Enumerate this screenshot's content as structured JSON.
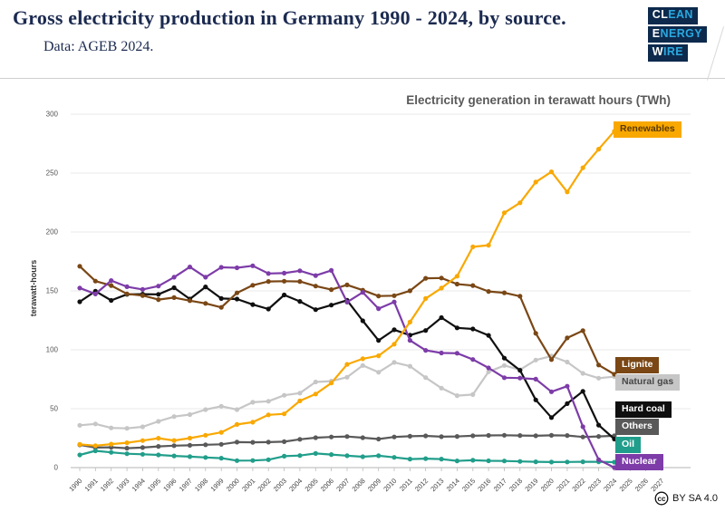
{
  "header": {
    "title": "Gross electricity production in Germany 1990 - 2024, by source.",
    "subtitle": "Data: AGEB 2024.",
    "logo": {
      "lines": [
        {
          "white": "CL",
          "cyan": "EAN"
        },
        {
          "white": "E",
          "cyan": "NERGY"
        },
        {
          "white": "W",
          "cyan": "IRE"
        }
      ],
      "navy": "#0d2a4d",
      "cyan": "#2aa9e0"
    }
  },
  "chart_data": {
    "type": "line",
    "title": "Electricity generation in terawatt hours (TWh)",
    "ylabel": "terawatt-hours",
    "ylim": [
      0,
      300
    ],
    "y_ticks": [
      0,
      50,
      100,
      150,
      200,
      250,
      300
    ],
    "grid": "horizontal-only",
    "legend_position": "right-inline-labels",
    "x": [
      1990,
      1991,
      1992,
      1993,
      1994,
      1995,
      1996,
      1997,
      1998,
      1999,
      2000,
      2001,
      2002,
      2003,
      2004,
      2005,
      2006,
      2007,
      2008,
      2009,
      2010,
      2011,
      2012,
      2013,
      2014,
      2015,
      2016,
      2017,
      2018,
      2019,
      2020,
      2021,
      2022,
      2023,
      2024
    ],
    "x_axis_labels": [
      "1990",
      "1991",
      "1992",
      "1993",
      "1994",
      "1995",
      "1996",
      "1997",
      "1998",
      "1999",
      "2000",
      "2001",
      "2002",
      "2003",
      "2004",
      "2005",
      "2006",
      "2007",
      "2008",
      "2009",
      "2010",
      "2011",
      "2012",
      "2013",
      "2014",
      "2015",
      "2016",
      "2017",
      "2018",
      "2019",
      "2020",
      "2021",
      "2022",
      "2023",
      "2024",
      "2025",
      "2026",
      "2027"
    ],
    "series": [
      {
        "name": "Renewables",
        "color": "#F9A800",
        "label_text_color": "#5a3a00",
        "values": [
          19.7,
          18.6,
          19.9,
          21.1,
          22.9,
          24.9,
          23.0,
          25.0,
          27.5,
          29.9,
          36.6,
          38.5,
          44.8,
          45.6,
          56.6,
          62.5,
          71.8,
          87.6,
          92.4,
          94.9,
          104.8,
          123.5,
          143.5,
          152.4,
          162.5,
          187.4,
          188.8,
          216.3,
          224.8,
          242.4,
          251.1,
          234.0,
          254.5,
          270.3,
          285.5
        ]
      },
      {
        "name": "Lignite",
        "color": "#7A4715",
        "label_text_color": "#ffffff",
        "values": [
          170.9,
          158.3,
          154.5,
          147.5,
          146.1,
          142.6,
          144.3,
          141.7,
          139.4,
          136.0,
          148.3,
          154.8,
          158.0,
          158.2,
          158.0,
          154.1,
          151.1,
          155.1,
          150.6,
          145.6,
          145.9,
          150.1,
          160.7,
          160.9,
          155.8,
          154.5,
          149.5,
          148.4,
          145.5,
          114.0,
          91.7,
          110.1,
          116.2,
          87.1,
          79.2
        ]
      },
      {
        "name": "Natural gas",
        "color": "#C6C6C6",
        "label_text_color": "#474747",
        "values": [
          35.9,
          37.1,
          33.7,
          33.3,
          34.6,
          39.2,
          43.3,
          45.0,
          49.2,
          52.1,
          49.2,
          55.5,
          56.3,
          61.4,
          63.2,
          72.7,
          73.4,
          76.7,
          86.7,
          80.9,
          89.3,
          86.1,
          76.4,
          67.5,
          61.1,
          62.0,
          81.3,
          86.7,
          83.0,
          91.3,
          94.7,
          89.6,
          80.0,
          75.9,
          77.2
        ]
      },
      {
        "name": "Hard coal",
        "color": "#0f0f0f",
        "label_text_color": "#ffffff",
        "values": [
          140.8,
          149.8,
          141.9,
          147.1,
          147.2,
          147.1,
          152.7,
          143.1,
          153.4,
          143.5,
          143.1,
          138.4,
          134.6,
          146.5,
          141.1,
          134.1,
          137.9,
          142.0,
          124.6,
          107.9,
          117.0,
          112.4,
          116.4,
          127.3,
          118.6,
          117.7,
          112.2,
          92.9,
          82.6,
          57.5,
          42.5,
          54.3,
          64.8,
          36.1,
          24.2
        ]
      },
      {
        "name": "Others",
        "color": "#595959",
        "label_text_color": "#ffffff",
        "values": [
          19.3,
          17.0,
          17.2,
          16.5,
          17.0,
          18.0,
          18.6,
          18.9,
          19.4,
          19.8,
          21.6,
          21.5,
          21.6,
          22.0,
          24.0,
          25.4,
          26.0,
          26.4,
          25.4,
          24.2,
          26.0,
          26.6,
          26.9,
          26.2,
          26.5,
          27.0,
          27.3,
          27.5,
          27.2,
          27.0,
          27.4,
          27.2,
          26.0,
          26.5,
          27.0
        ]
      },
      {
        "name": "Oil",
        "color": "#219E8B",
        "label_text_color": "#ffffff",
        "values": [
          10.8,
          14.2,
          12.9,
          11.8,
          11.3,
          10.8,
          9.9,
          9.3,
          8.6,
          8.0,
          5.9,
          6.0,
          6.7,
          9.7,
          10.2,
          12.0,
          11.1,
          10.1,
          9.2,
          10.1,
          8.7,
          7.2,
          7.6,
          7.2,
          5.7,
          6.2,
          5.8,
          5.6,
          5.2,
          4.9,
          4.7,
          4.8,
          4.9,
          4.9,
          4.6
        ]
      },
      {
        "name": "Nuclear",
        "color": "#7D3CA8",
        "label_text_color": "#ffffff",
        "values": [
          152.5,
          147.4,
          158.8,
          153.5,
          151.2,
          154.1,
          161.6,
          170.3,
          161.6,
          170.0,
          169.6,
          171.3,
          164.8,
          165.1,
          167.1,
          163.0,
          167.4,
          140.5,
          148.8,
          134.9,
          140.6,
          108.0,
          99.5,
          97.3,
          97.1,
          91.8,
          84.6,
          76.3,
          76.0,
          75.1,
          64.4,
          69.1,
          34.7,
          6.7,
          0.0
        ]
      }
    ]
  },
  "footer": {
    "license": "BY SA 4.0",
    "cc_icon": "cc"
  }
}
